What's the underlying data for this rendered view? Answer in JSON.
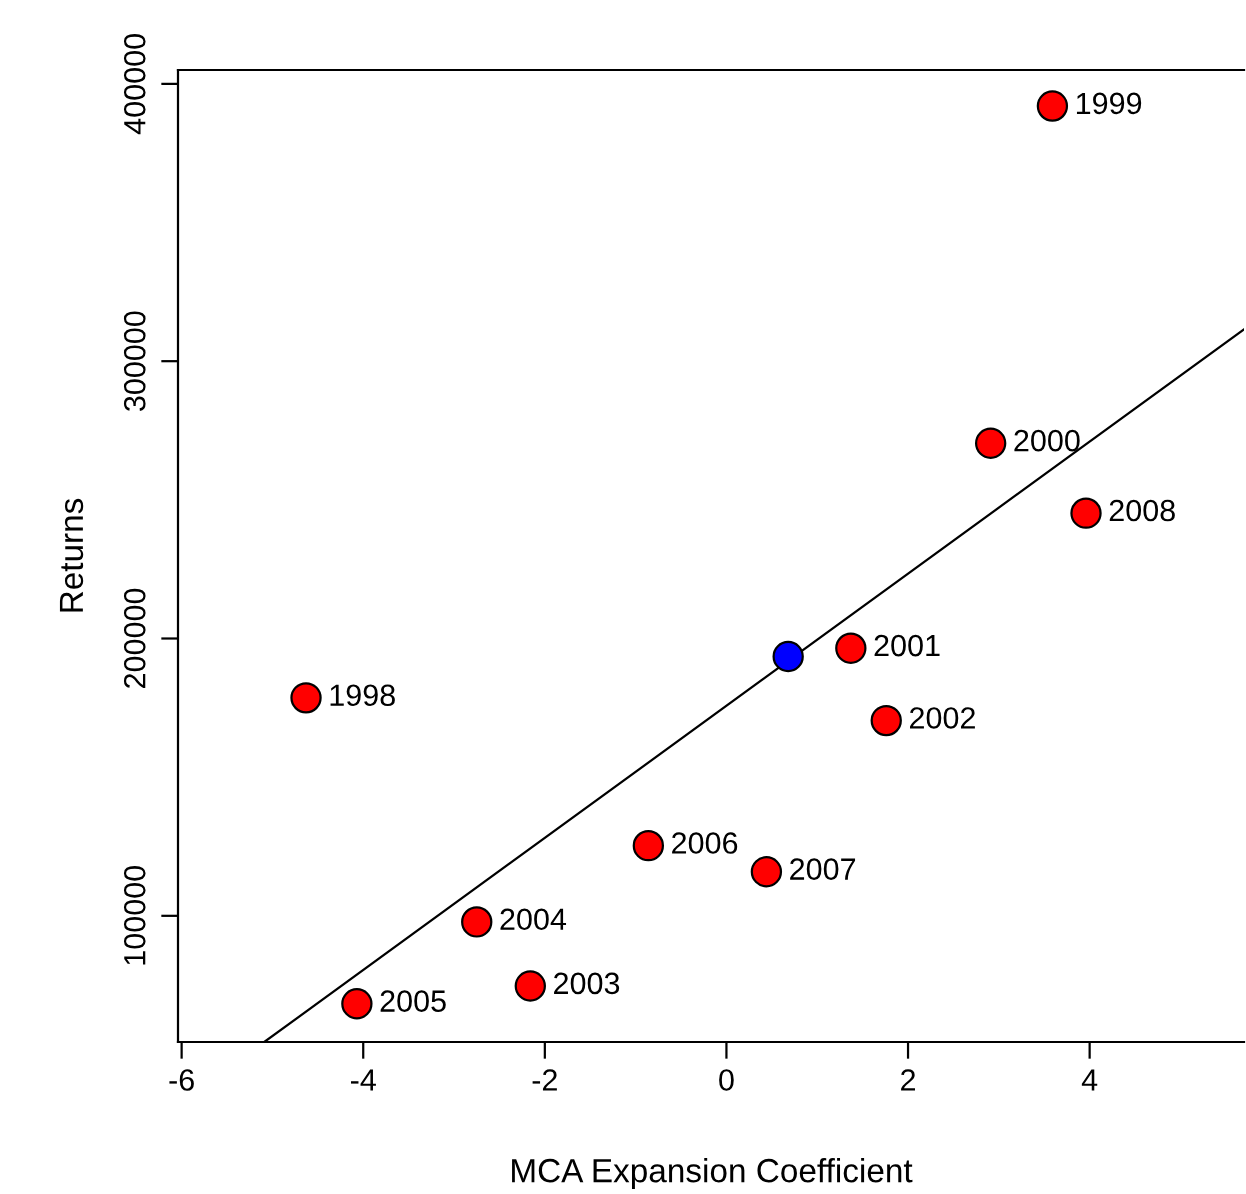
{
  "chart_data": {
    "type": "scatter",
    "xlabel": "MCA Expansion Coefficient",
    "ylabel": "Returns",
    "xlim": [
      -6.04,
      5.7
    ],
    "ylim": [
      54500,
      405000
    ],
    "xticks": [
      {
        "value": -6,
        "label": "-6"
      },
      {
        "value": -4,
        "label": "-4"
      },
      {
        "value": -2,
        "label": "-2"
      },
      0,
      2,
      4
    ],
    "yticks": [
      100000,
      200000,
      300000,
      400000
    ],
    "grid": false,
    "legend": false,
    "marker": "circle",
    "series": [
      {
        "color": "#ff0000",
        "x": [
          -4.63,
          3.59,
          2.91,
          1.37,
          1.76,
          -2.16,
          -2.75,
          -4.07,
          -0.86,
          0.44,
          3.96
        ],
        "values": [
          178600,
          392000,
          270400,
          196500,
          170400,
          74700,
          97800,
          68300,
          125300,
          115900,
          245200
        ]
      },
      {
        "color": "#0000ff",
        "x": [
          0.68
        ],
        "values": [
          193500
        ]
      },
      {
        "type": "line",
        "color": "#000000",
        "line_style": "solid",
        "marker": "none",
        "x": [
          -5.09,
          5.7
        ],
        "values": [
          54500,
          311500
        ]
      }
    ],
    "annotations": [
      {
        "text": "1998",
        "x": -4.63,
        "y": 178600
      },
      {
        "text": "1999",
        "x": 3.59,
        "y": 392000
      },
      {
        "text": "2000",
        "x": 2.91,
        "y": 270400
      },
      {
        "text": "2001",
        "x": 1.37,
        "y": 196500
      },
      {
        "text": "2002",
        "x": 1.76,
        "y": 170400
      },
      {
        "text": "2003",
        "x": -2.16,
        "y": 74700
      },
      {
        "text": "2004",
        "x": -2.75,
        "y": 97800
      },
      {
        "text": "2005",
        "x": -4.07,
        "y": 68300
      },
      {
        "text": "2006",
        "x": -0.86,
        "y": 125300
      },
      {
        "text": "2007",
        "x": 0.44,
        "y": 115900
      },
      {
        "text": "2008",
        "x": 3.96,
        "y": 245200
      }
    ]
  }
}
